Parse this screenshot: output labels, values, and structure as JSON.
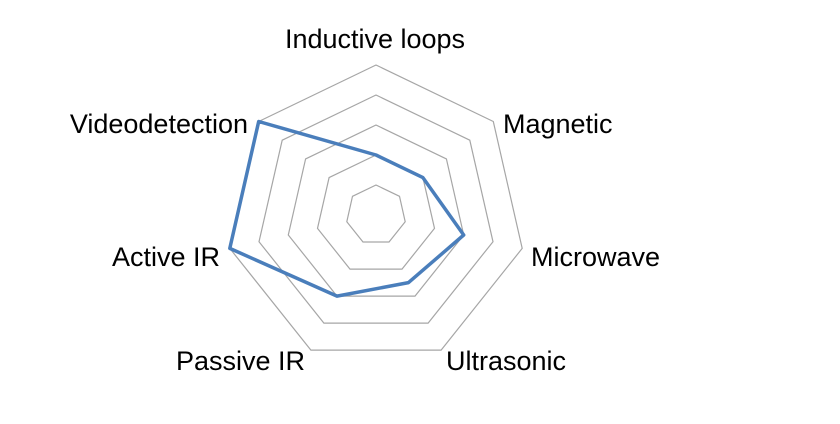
{
  "chart_data": {
    "type": "radar",
    "categories": [
      "Inductive loops",
      "Magnetic",
      "Microwave",
      "Ultrasonic",
      "Passive IR",
      "Active IR",
      "Videodetection"
    ],
    "series": [
      {
        "values": [
          2.0,
          2.0,
          3.0,
          2.5,
          3.0,
          5.0,
          5.0
        ],
        "color": "#4a7ebb"
      }
    ],
    "rlim": [
      0,
      5
    ],
    "rings": [
      1,
      2,
      3,
      4,
      5
    ],
    "grid": true,
    "grid_color": "#a6a6a6",
    "legend": "none"
  }
}
